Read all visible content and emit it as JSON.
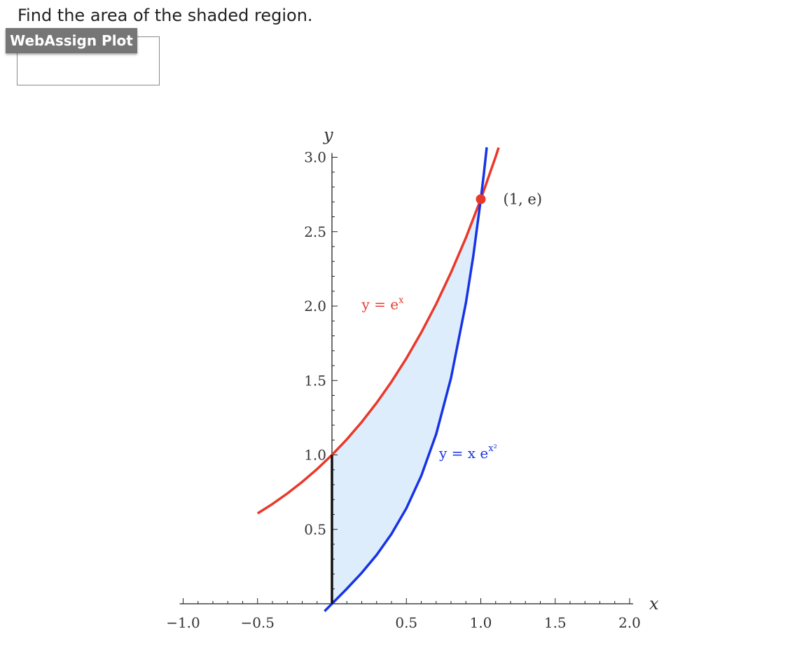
{
  "question": {
    "text": "Find the area of the shaded region."
  },
  "plot_tab": {
    "label": "WebAssign Plot"
  },
  "colors": {
    "red_curve": "#e8392a",
    "blue_curve": "#1633e6",
    "shade": "#deedfb",
    "axis": "#222222",
    "point": "#e8392a"
  },
  "chart_data": {
    "type": "line",
    "x_axis": {
      "label": "x",
      "range": [
        -1.0,
        2.0
      ],
      "ticks": [
        -1.0,
        -0.5,
        0.5,
        1.0,
        1.5,
        2.0
      ],
      "tick_labels": [
        "−1.0",
        "−0.5",
        "0.5",
        "1.0",
        "1.5",
        "2.0"
      ]
    },
    "y_axis": {
      "label": "y",
      "range": [
        0,
        3.0
      ],
      "ticks": [
        0.5,
        1.0,
        1.5,
        2.0,
        2.5,
        3.0
      ],
      "tick_labels": [
        "0.5",
        "1.0",
        "1.5",
        "2.0",
        "2.5",
        "3.0"
      ]
    },
    "grid": false,
    "series": [
      {
        "name_base": "y = e",
        "name_exp": "x",
        "color": "#e8392a",
        "x": [
          -0.5,
          -0.4,
          -0.3,
          -0.2,
          -0.1,
          0.0,
          0.1,
          0.2,
          0.3,
          0.4,
          0.5,
          0.6,
          0.7,
          0.8,
          0.9,
          1.0,
          1.1,
          1.12
        ],
        "y": [
          0.607,
          0.67,
          0.741,
          0.819,
          0.905,
          1.0,
          1.105,
          1.221,
          1.35,
          1.492,
          1.649,
          1.822,
          2.014,
          2.226,
          2.46,
          2.718,
          3.004,
          3.065
        ]
      },
      {
        "name_base": "y = x e",
        "name_exp": "x²",
        "color": "#1633e6",
        "x": [
          -0.05,
          0.0,
          0.1,
          0.2,
          0.3,
          0.4,
          0.5,
          0.6,
          0.7,
          0.8,
          0.9,
          0.95,
          1.0,
          1.02,
          1.04
        ],
        "y": [
          -0.05,
          0.0,
          0.101,
          0.208,
          0.328,
          0.469,
          0.642,
          0.86,
          1.14,
          1.517,
          2.023,
          2.34,
          2.718,
          2.886,
          3.067
        ]
      }
    ],
    "shaded_region": {
      "between": [
        "y = e^x",
        "y = x e^(x^2)"
      ],
      "x_from": 0.0,
      "x_to": 1.0
    },
    "annotations": [
      {
        "text": "(1, e)",
        "x": 1.0,
        "y": 2.718
      }
    ]
  }
}
